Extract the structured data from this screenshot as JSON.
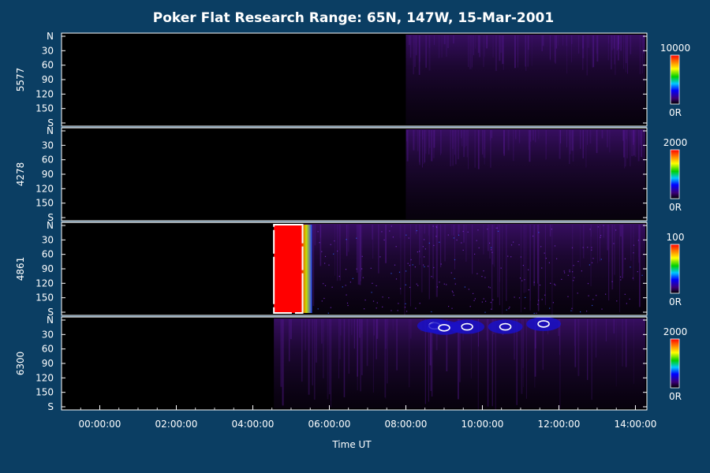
{
  "chart_data": {
    "type": "heatmap",
    "title": "Poker Flat Research Range: 65N, 147W, 15-Mar-2001",
    "xlabel": "Time UT",
    "x_ticks": [
      "00:00:00",
      "02:00:00",
      "04:00:00",
      "06:00:00",
      "08:00:00",
      "10:00:00",
      "12:00:00",
      "14:00:00"
    ],
    "x_tick_hours": [
      0,
      2,
      4,
      6,
      8,
      10,
      12,
      14
    ],
    "xlim_hours": [
      -1.0,
      14.3
    ],
    "y_ticks": [
      "N",
      "30",
      "60",
      "90",
      "120",
      "150",
      "S"
    ],
    "y_tick_values": [
      0,
      30,
      60,
      90,
      120,
      150,
      180
    ],
    "ylim": [
      0,
      180
    ],
    "panels": [
      {
        "label": "5577",
        "scale_max": "10000",
        "scale_min": "0R",
        "data_start_hour": 8.0,
        "saturated_until_hour": null
      },
      {
        "label": "4278",
        "scale_max": "2000",
        "scale_min": "0R",
        "data_start_hour": 8.0,
        "saturated_until_hour": null
      },
      {
        "label": "4861",
        "scale_max": "100",
        "scale_min": "0R",
        "data_start_hour": 4.55,
        "saturated_until_hour": 5.3
      },
      {
        "label": "6300",
        "scale_max": "2000",
        "scale_min": "0R",
        "data_start_hour": 4.55,
        "saturated_until_hour": null
      }
    ],
    "colors": {
      "background": "#0b3e63",
      "plot_background": "#000000",
      "faint": "#2a0a4a",
      "saturated": "#ff0000"
    }
  }
}
